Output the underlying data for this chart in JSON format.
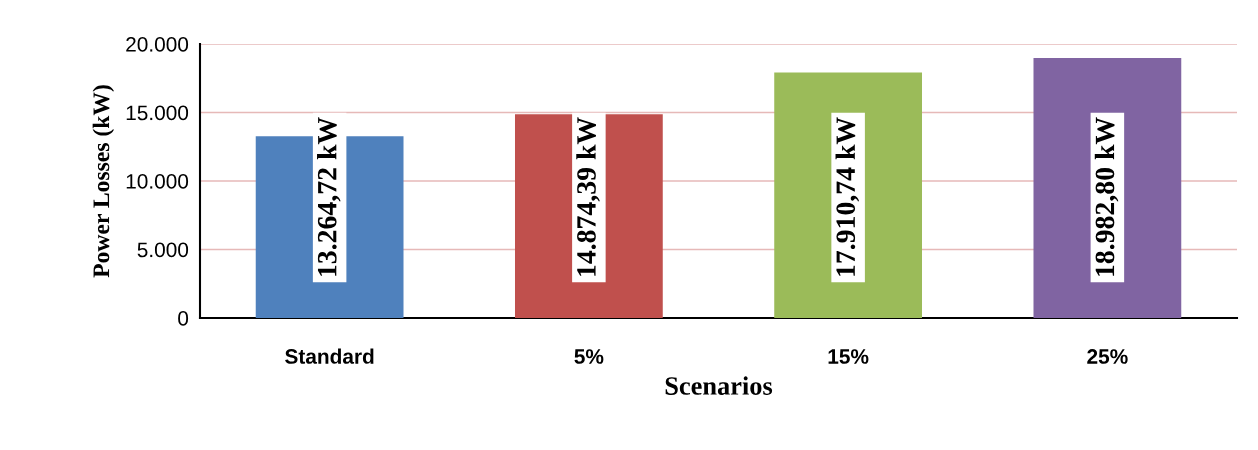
{
  "chart_data": {
    "type": "bar",
    "xlabel": "Scenarios",
    "ylabel": "Power Losses (kW)",
    "categories": [
      "Standard",
      "5%",
      "15%",
      "25%"
    ],
    "values": [
      13264.72,
      14874.39,
      17910.74,
      18982.8
    ],
    "colors": [
      "#4f81bd",
      "#c0504d",
      "#9bbb59",
      "#8064a2"
    ],
    "value_labels": [
      "13.264,72 kW",
      "14.874,39 kW",
      "17.910,74 kW",
      "18.982,80 kW"
    ],
    "ylim": [
      0,
      20000
    ],
    "yticks": [
      0,
      {
        "value": 5000,
        "label": "5.000"
      },
      {
        "value": 10000,
        "label": "10.000"
      },
      {
        "value": 15000,
        "label": "15.000"
      },
      {
        "value": 20000,
        "label": "20.000"
      }
    ],
    "grid": "y",
    "legend": false
  }
}
